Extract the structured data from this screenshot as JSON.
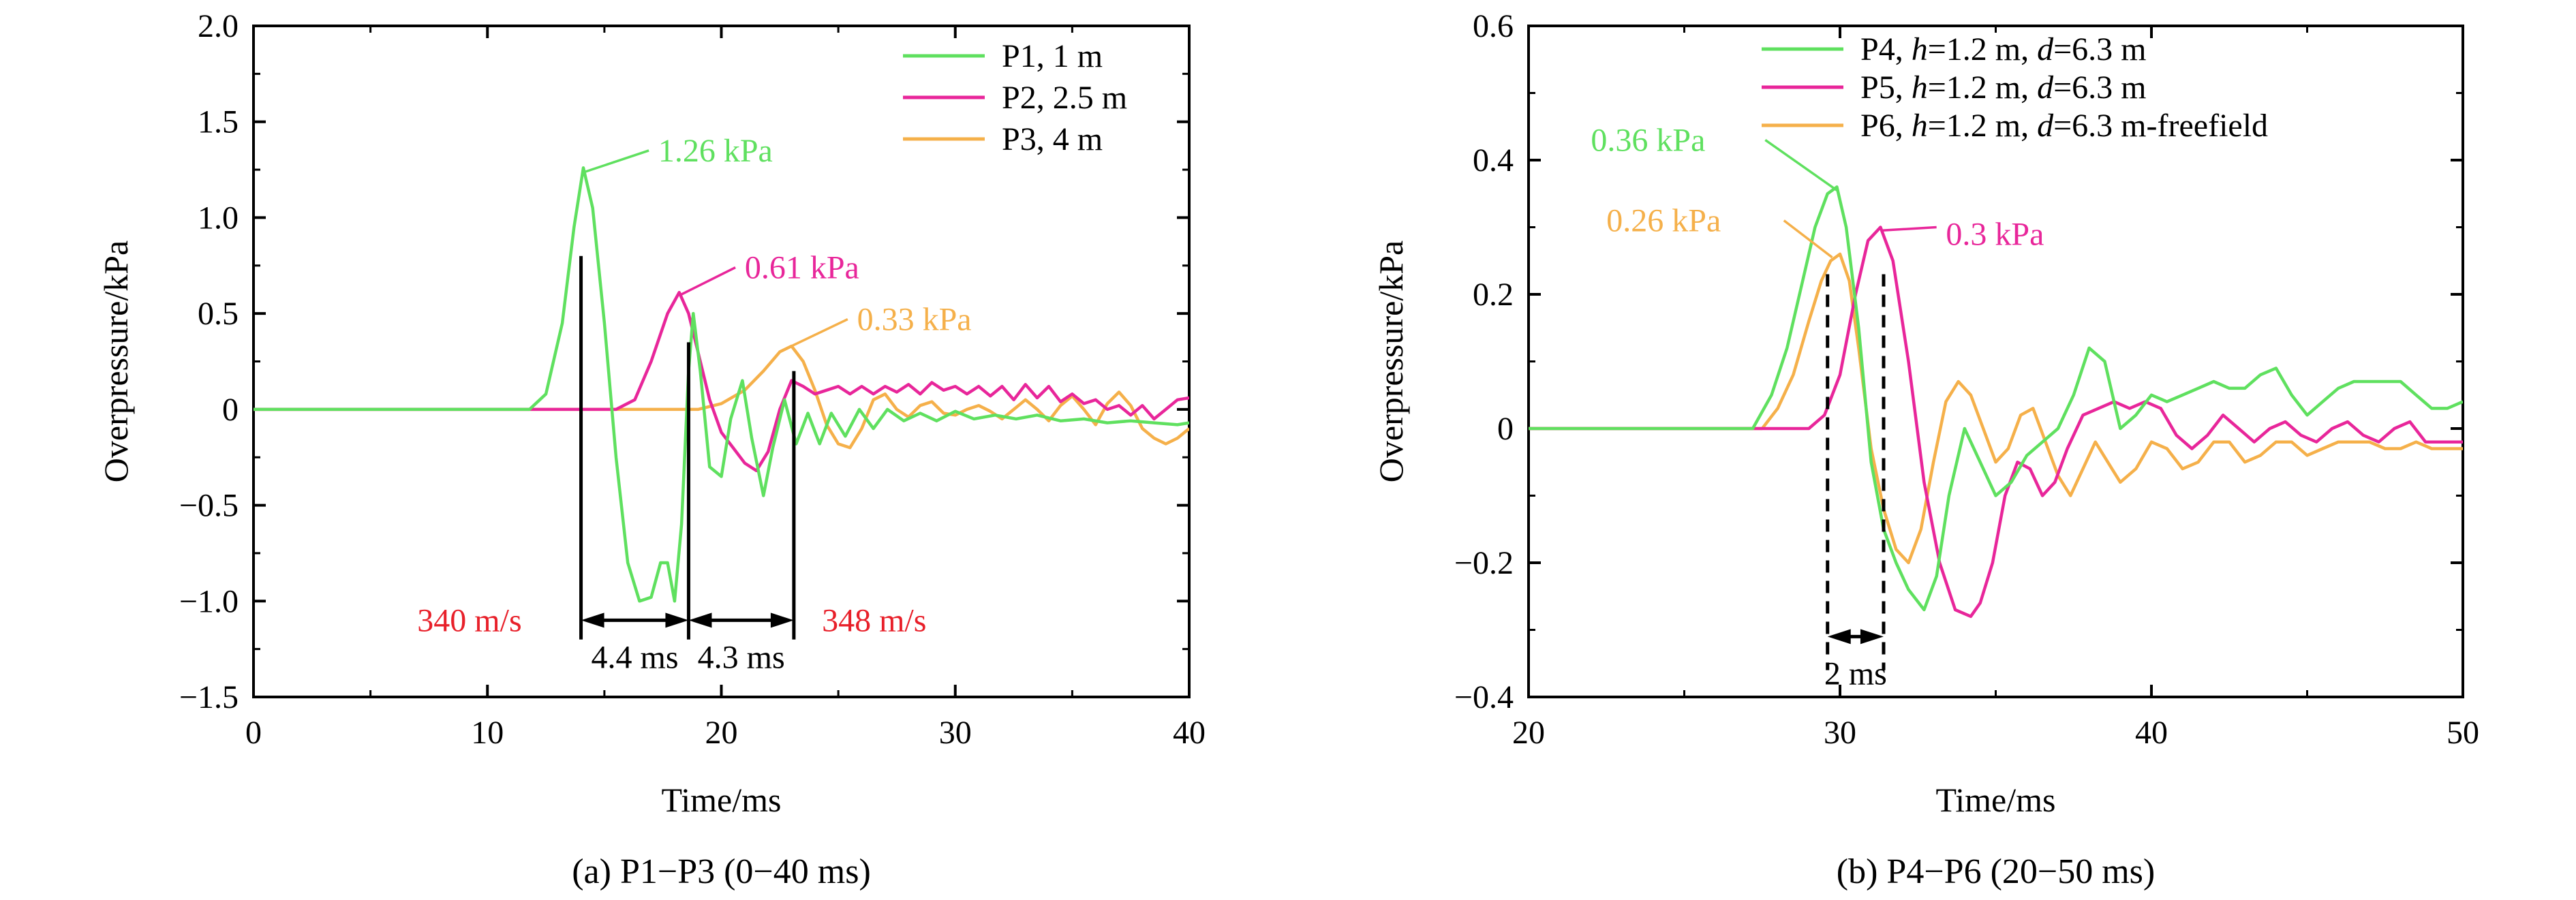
{
  "colors": {
    "green": "#5fe05f",
    "magenta": "#e8269a",
    "orange": "#f5b04a",
    "red": "#e8202a",
    "black": "#000000"
  },
  "chart_data": [
    {
      "type": "line",
      "caption": "(a) P1−P3 (0−40 ms)",
      "xlabel": "Time/ms",
      "ylabel": "Overpressure/kPa",
      "xlim": [
        0,
        40
      ],
      "ylim": [
        -1.5,
        2.0
      ],
      "xticks": [
        0,
        10,
        20,
        30,
        40
      ],
      "xtick_labels": [
        "0",
        "10",
        "20",
        "30",
        "40"
      ],
      "yticks": [
        -1.5,
        -1.0,
        -0.5,
        0,
        0.5,
        1.0,
        1.5,
        2.0
      ],
      "ytick_labels": [
        "−1.5",
        "−1.0",
        "−0.5",
        "0",
        "0.5",
        "1.0",
        "1.5",
        "2.0"
      ],
      "legend_position": "top-right",
      "series": [
        {
          "name": "P1, 1 m",
          "color": "#5fe05f",
          "x": [
            0,
            11.8,
            12.5,
            13.2,
            13.7,
            14.1,
            14.5,
            15.0,
            15.5,
            16.0,
            16.5,
            17.0,
            17.4,
            17.7,
            18.0,
            18.3,
            18.6,
            18.8,
            19.1,
            19.5,
            20.0,
            20.4,
            20.9,
            21.3,
            21.8,
            22.2,
            22.7,
            23.2,
            23.7,
            24.2,
            24.7,
            25.3,
            25.9,
            26.5,
            27.1,
            27.8,
            28.5,
            29.2,
            30.0,
            30.8,
            31.7,
            32.6,
            33.5,
            34.5,
            35.5,
            36.5,
            37.5,
            38.5,
            39.5,
            40
          ],
          "y": [
            0,
            0,
            0.08,
            0.45,
            0.95,
            1.26,
            1.05,
            0.45,
            -0.25,
            -0.8,
            -1.0,
            -0.98,
            -0.8,
            -0.8,
            -1.0,
            -0.6,
            0.2,
            0.5,
            0.2,
            -0.3,
            -0.35,
            -0.05,
            0.15,
            -0.15,
            -0.45,
            -0.2,
            0.05,
            -0.18,
            -0.02,
            -0.18,
            -0.02,
            -0.14,
            0.0,
            -0.1,
            0.0,
            -0.06,
            -0.02,
            -0.06,
            -0.01,
            -0.05,
            -0.03,
            -0.05,
            -0.03,
            -0.06,
            -0.05,
            -0.07,
            -0.06,
            -0.07,
            -0.08,
            -0.07
          ]
        },
        {
          "name": "P2, 2.5 m",
          "color": "#e8269a",
          "x": [
            0,
            15.5,
            16.3,
            17.0,
            17.7,
            18.2,
            18.6,
            19.0,
            19.5,
            20.0,
            20.5,
            21.0,
            21.5,
            22.0,
            22.5,
            23.0,
            23.5,
            24.0,
            24.5,
            25.0,
            25.5,
            26.0,
            26.5,
            27.0,
            27.5,
            28.0,
            28.5,
            29.0,
            29.5,
            30.0,
            30.5,
            31.0,
            31.5,
            32.0,
            32.5,
            33.0,
            33.5,
            34.0,
            34.5,
            35.0,
            35.5,
            36.0,
            36.5,
            37.0,
            37.5,
            38.0,
            38.5,
            39.0,
            39.5,
            40
          ],
          "y": [
            0,
            0,
            0.05,
            0.25,
            0.5,
            0.61,
            0.5,
            0.3,
            0.05,
            -0.12,
            -0.2,
            -0.28,
            -0.32,
            -0.22,
            0.0,
            0.15,
            0.12,
            0.08,
            0.1,
            0.12,
            0.08,
            0.12,
            0.08,
            0.12,
            0.09,
            0.13,
            0.08,
            0.14,
            0.1,
            0.12,
            0.08,
            0.12,
            0.07,
            0.12,
            0.05,
            0.13,
            0.06,
            0.12,
            0.04,
            0.08,
            0.03,
            0.05,
            0.0,
            0.02,
            -0.03,
            0.02,
            -0.05,
            0.0,
            0.05,
            0.06
          ]
        },
        {
          "name": "P3, 4 m",
          "color": "#f5b04a",
          "x": [
            0,
            19.0,
            20.0,
            21.0,
            21.8,
            22.5,
            23.0,
            23.5,
            24.0,
            24.5,
            25.0,
            25.5,
            26.0,
            26.5,
            27.0,
            27.5,
            28.0,
            28.5,
            29.0,
            29.5,
            30.0,
            30.5,
            31.0,
            31.5,
            32.0,
            32.5,
            33.0,
            33.5,
            34.0,
            34.5,
            35.0,
            35.5,
            36.0,
            36.5,
            37.0,
            37.5,
            38.0,
            38.5,
            39.0,
            39.5,
            40
          ],
          "y": [
            0,
            0,
            0.03,
            0.1,
            0.2,
            0.3,
            0.33,
            0.25,
            0.1,
            -0.08,
            -0.18,
            -0.2,
            -0.1,
            0.05,
            0.08,
            0.0,
            -0.04,
            0.02,
            0.04,
            -0.02,
            -0.03,
            0.0,
            0.02,
            -0.01,
            -0.05,
            0.0,
            0.05,
            0.0,
            -0.06,
            0.02,
            0.07,
            0.0,
            -0.08,
            0.03,
            0.09,
            0.02,
            -0.1,
            -0.15,
            -0.18,
            -0.15,
            -0.1
          ]
        }
      ],
      "annotations": [
        {
          "text": "1.26 kPa",
          "color": "#5fe05f",
          "x": 17.3,
          "y": 1.35,
          "point": [
            14.2,
            1.24
          ],
          "anchor_end": [
            16.9,
            1.35
          ]
        },
        {
          "text": "0.61 kPa",
          "color": "#e8269a",
          "x": 21.0,
          "y": 0.74,
          "point": [
            18.3,
            0.6
          ],
          "anchor_end": [
            20.6,
            0.74
          ]
        },
        {
          "text": "0.33 kPa",
          "color": "#f5b04a",
          "x": 25.8,
          "y": 0.47,
          "point": [
            23.0,
            0.33
          ],
          "anchor_end": [
            25.4,
            0.47
          ]
        }
      ],
      "markers": [
        {
          "x": 14.0,
          "y_top": 0.8,
          "y_bottom": -1.2
        },
        {
          "x": 18.6,
          "y_top": 0.35,
          "y_bottom": -1.2
        },
        {
          "x": 23.1,
          "y_top": 0.2,
          "y_bottom": -1.2
        }
      ],
      "arrows": [
        {
          "from": 14.0,
          "to": 18.6,
          "y": -1.1,
          "label": "4.4 ms"
        },
        {
          "from": 18.6,
          "to": 23.1,
          "y": -1.1,
          "label": "4.3 ms"
        }
      ],
      "speed_labels": [
        {
          "text": "340 m/s",
          "x": 7.0,
          "y": -1.1
        },
        {
          "text": "348 m/s",
          "x": 24.3,
          "y": -1.1
        }
      ]
    },
    {
      "type": "line",
      "caption": "(b) P4−P6 (20−50 ms)",
      "xlabel": "Time/ms",
      "ylabel": "Overpressure/kPa",
      "xlim": [
        20,
        50
      ],
      "ylim": [
        -0.4,
        0.6
      ],
      "xticks": [
        20,
        30,
        40,
        50
      ],
      "xtick_labels": [
        "20",
        "30",
        "40",
        "50"
      ],
      "yticks": [
        -0.4,
        -0.2,
        0,
        0.2,
        0.4,
        0.6
      ],
      "ytick_labels": [
        "−0.4",
        "−0.2",
        "0",
        "0.2",
        "0.4",
        "0.6"
      ],
      "legend_position": "top-right",
      "series": [
        {
          "name_parts": [
            "P4, ",
            "h",
            "=1.2 m, ",
            "d",
            "=6.3 m"
          ],
          "color": "#5fe05f",
          "x": [
            20,
            27.2,
            27.8,
            28.3,
            28.8,
            29.2,
            29.6,
            29.9,
            30.2,
            30.6,
            31.0,
            31.4,
            31.8,
            32.2,
            32.7,
            33.1,
            33.5,
            34.0,
            34.5,
            35.0,
            35.5,
            36.0,
            36.5,
            37.0,
            37.5,
            38.0,
            38.5,
            39.0,
            39.5,
            40.0,
            40.5,
            41.0,
            41.5,
            42.0,
            42.5,
            43.0,
            43.5,
            44.0,
            44.5,
            45.0,
            45.5,
            46.0,
            46.5,
            47.0,
            47.5,
            48.0,
            48.5,
            49.0,
            49.5,
            50
          ],
          "y": [
            0,
            0,
            0.05,
            0.12,
            0.22,
            0.3,
            0.35,
            0.36,
            0.3,
            0.15,
            -0.05,
            -0.15,
            -0.2,
            -0.24,
            -0.27,
            -0.22,
            -0.1,
            0.0,
            -0.05,
            -0.1,
            -0.08,
            -0.04,
            -0.02,
            0.0,
            0.05,
            0.12,
            0.1,
            0.0,
            0.02,
            0.05,
            0.04,
            0.05,
            0.06,
            0.07,
            0.06,
            0.06,
            0.08,
            0.09,
            0.05,
            0.02,
            0.04,
            0.06,
            0.07,
            0.07,
            0.07,
            0.07,
            0.05,
            0.03,
            0.03,
            0.04
          ]
        },
        {
          "name_parts": [
            "P5, ",
            "h",
            "=1.2 m, ",
            "d",
            "=6.3 m"
          ],
          "color": "#e8269a",
          "x": [
            20,
            29.0,
            29.5,
            30.0,
            30.5,
            30.9,
            31.3,
            31.7,
            32.2,
            32.7,
            33.2,
            33.7,
            34.2,
            34.5,
            34.9,
            35.3,
            35.7,
            36.1,
            36.5,
            36.9,
            37.3,
            37.8,
            38.3,
            38.8,
            39.3,
            39.8,
            40.3,
            40.8,
            41.3,
            41.8,
            42.3,
            42.8,
            43.3,
            43.8,
            44.3,
            44.8,
            45.3,
            45.8,
            46.3,
            46.8,
            47.3,
            47.8,
            48.3,
            48.8,
            49.3,
            50
          ],
          "y": [
            0,
            0,
            0.02,
            0.08,
            0.2,
            0.28,
            0.3,
            0.25,
            0.1,
            -0.08,
            -0.2,
            -0.27,
            -0.28,
            -0.26,
            -0.2,
            -0.1,
            -0.05,
            -0.06,
            -0.1,
            -0.08,
            -0.03,
            0.02,
            0.03,
            0.04,
            0.03,
            0.04,
            0.03,
            -0.01,
            -0.03,
            -0.01,
            0.02,
            0.0,
            -0.02,
            0.0,
            0.01,
            -0.01,
            -0.02,
            0.0,
            0.01,
            -0.01,
            -0.02,
            0.0,
            0.01,
            -0.02,
            -0.02,
            -0.02
          ]
        },
        {
          "name_parts": [
            "P6, ",
            "h",
            "=1.2 m, ",
            "d",
            "=6.3 m-freefield"
          ],
          "color": "#f5b04a",
          "x": [
            20,
            27.5,
            28.0,
            28.5,
            29.0,
            29.4,
            29.7,
            30.0,
            30.3,
            30.6,
            31.0,
            31.4,
            31.8,
            32.2,
            32.6,
            33.0,
            33.4,
            33.8,
            34.2,
            34.6,
            35.0,
            35.4,
            35.8,
            36.2,
            36.6,
            37.0,
            37.4,
            37.8,
            38.2,
            38.6,
            39.0,
            39.5,
            40.0,
            40.5,
            41.0,
            41.5,
            42.0,
            42.5,
            43.0,
            43.5,
            44.0,
            44.5,
            45.0,
            45.5,
            46.0,
            46.5,
            47.0,
            47.5,
            48.0,
            48.5,
            49.0,
            50
          ],
          "y": [
            0,
            0,
            0.03,
            0.08,
            0.16,
            0.22,
            0.25,
            0.26,
            0.22,
            0.12,
            -0.03,
            -0.12,
            -0.18,
            -0.2,
            -0.15,
            -0.05,
            0.04,
            0.07,
            0.05,
            0.0,
            -0.05,
            -0.03,
            0.02,
            0.03,
            -0.02,
            -0.07,
            -0.1,
            -0.06,
            -0.02,
            -0.05,
            -0.08,
            -0.06,
            -0.02,
            -0.03,
            -0.06,
            -0.05,
            -0.02,
            -0.02,
            -0.05,
            -0.04,
            -0.02,
            -0.02,
            -0.04,
            -0.03,
            -0.02,
            -0.02,
            -0.02,
            -0.03,
            -0.03,
            -0.02,
            -0.03,
            -0.03
          ]
        }
      ],
      "annotations": [
        {
          "text": "0.36 kPa",
          "color": "#5fe05f",
          "x": 22.0,
          "y": 0.43,
          "point": [
            29.9,
            0.355
          ],
          "anchor_end": [
            27.6,
            0.43
          ]
        },
        {
          "text": "0.26 kPa",
          "color": "#f5b04a",
          "x": 22.5,
          "y": 0.31,
          "point": [
            29.75,
            0.255
          ],
          "anchor_end": [
            28.2,
            0.31
          ]
        },
        {
          "text": "0.3 kPa",
          "color": "#e8269a",
          "x": 33.4,
          "y": 0.29,
          "point": [
            31.3,
            0.295
          ],
          "anchor_end": [
            33.1,
            0.3
          ]
        }
      ],
      "markers": [
        {
          "x": 29.6,
          "y_top": 0.23,
          "y_bottom": -0.36,
          "dashed": true
        },
        {
          "x": 31.4,
          "y_top": 0.23,
          "y_bottom": -0.36,
          "dashed": true
        }
      ],
      "arrows": [
        {
          "from": 29.6,
          "to": 31.4,
          "y": -0.31,
          "label": "2 ms"
        }
      ]
    }
  ]
}
